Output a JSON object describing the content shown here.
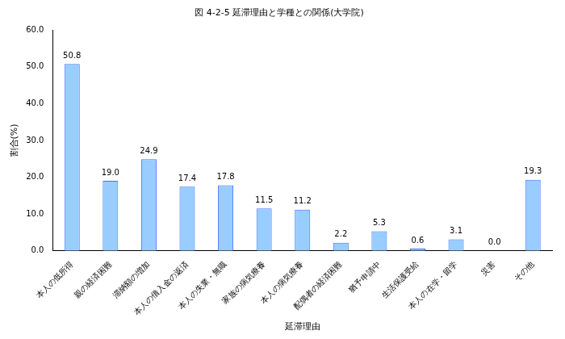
{
  "chart_data": {
    "type": "bar",
    "title": "図 4-2-5 延滞理由と学種との関係(大学院)",
    "x_label": "延滞理由",
    "y_label": "割合(%)",
    "categories": [
      "本人の低所得",
      "親の経済困難",
      "滞納額の増加",
      "本人の借入金の返済",
      "本人の失業・無職",
      "家族の病気療養",
      "本人の病気療養",
      "配偶者の経済困難",
      "猶予申請中",
      "生活保護受給",
      "本人の在学・留学",
      "災害",
      "その他"
    ],
    "values": [
      50.8,
      19.0,
      24.9,
      17.4,
      17.8,
      11.5,
      11.2,
      2.2,
      5.3,
      0.6,
      3.1,
      0.0,
      19.3
    ],
    "value_labels": [
      "50.8",
      "19.0",
      "24.9",
      "17.4",
      "17.8",
      "11.5",
      "11.2",
      "2.2",
      "5.3",
      "0.6",
      "3.1",
      "0.0",
      "19.3"
    ],
    "data_labels": true,
    "color": "#99ccff",
    "ylim": [
      0,
      60
    ],
    "yticks": [
      {
        "value": 0,
        "label": "0.0"
      },
      {
        "value": 10,
        "label": "10.0"
      },
      {
        "value": 20,
        "label": "20.0"
      },
      {
        "value": 30,
        "label": "30.0"
      },
      {
        "value": 40,
        "label": "40.0"
      },
      {
        "value": 50,
        "label": "50.0"
      },
      {
        "value": 60,
        "label": "60.0"
      }
    ],
    "grid": false
  }
}
